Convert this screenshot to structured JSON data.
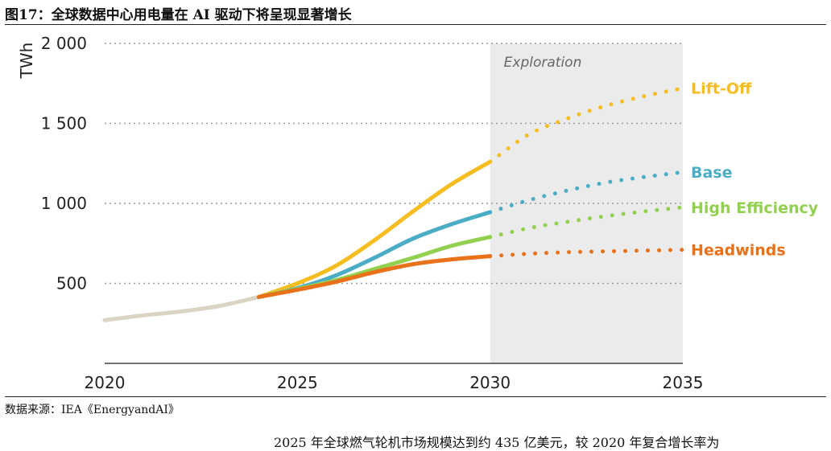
{
  "header": {
    "title": "图17：全球数据中心用电量在 AI 驱动下将呈现显著增长"
  },
  "footer": {
    "source": "数据来源：IEA《EnergyandAI》",
    "body_text": "2025 年全球燃气轮机市场规模达到约 435 亿美元，较 2020 年复合增长率为"
  },
  "chart_data": {
    "type": "line",
    "ylabel": "TWh",
    "xlim": [
      2020,
      2035
    ],
    "ylim": [
      0,
      2000
    ],
    "xticks": [
      2020,
      2025,
      2030,
      2035
    ],
    "xtick_labels": [
      "2020",
      "2025",
      "2030",
      "2035"
    ],
    "yticks": [
      500,
      1000,
      1500,
      2000
    ],
    "ytick_labels": [
      "500",
      "1 000",
      "1 500",
      "2 000"
    ],
    "grid": "horizontal dotted",
    "shaded_region": {
      "label": "Exploration",
      "x_start": 2030,
      "x_end": 2035,
      "color": "#ebebeb"
    },
    "series": [
      {
        "name": "",
        "color": "#d9d4c3",
        "style": "solid",
        "x": [
          2020,
          2021,
          2022,
          2023,
          2024
        ],
        "y": [
          270,
          300,
          325,
          360,
          415
        ]
      },
      {
        "name": "Lift-Off",
        "color": "#f5bd1f",
        "style": "solid-then-dotted",
        "x": [
          2024,
          2025,
          2026,
          2027,
          2028,
          2029,
          2030,
          2031,
          2032,
          2033,
          2034,
          2035
        ],
        "y": [
          415,
          500,
          610,
          770,
          950,
          1120,
          1260,
          1430,
          1530,
          1610,
          1670,
          1720
        ],
        "solid_until": 2030
      },
      {
        "name": "Base",
        "color": "#4bacc6",
        "style": "solid-then-dotted",
        "x": [
          2024,
          2025,
          2026,
          2027,
          2028,
          2029,
          2030,
          2031,
          2032,
          2033,
          2034,
          2035
        ],
        "y": [
          415,
          470,
          550,
          660,
          780,
          870,
          945,
          1020,
          1080,
          1130,
          1165,
          1195
        ],
        "solid_until": 2030
      },
      {
        "name": "High Efficiency",
        "color": "#92d050",
        "style": "solid-then-dotted",
        "x": [
          2024,
          2025,
          2026,
          2027,
          2028,
          2029,
          2030,
          2031,
          2032,
          2033,
          2034,
          2035
        ],
        "y": [
          415,
          465,
          520,
          590,
          660,
          735,
          790,
          845,
          885,
          920,
          950,
          975
        ],
        "solid_until": 2030
      },
      {
        "name": "Headwinds",
        "color": "#e8711a",
        "style": "solid-then-dotted",
        "x": [
          2024,
          2025,
          2026,
          2027,
          2028,
          2029,
          2030,
          2031,
          2032,
          2033,
          2034,
          2035
        ],
        "y": [
          415,
          460,
          510,
          570,
          620,
          650,
          670,
          685,
          695,
          700,
          705,
          710
        ],
        "solid_until": 2030
      }
    ]
  }
}
